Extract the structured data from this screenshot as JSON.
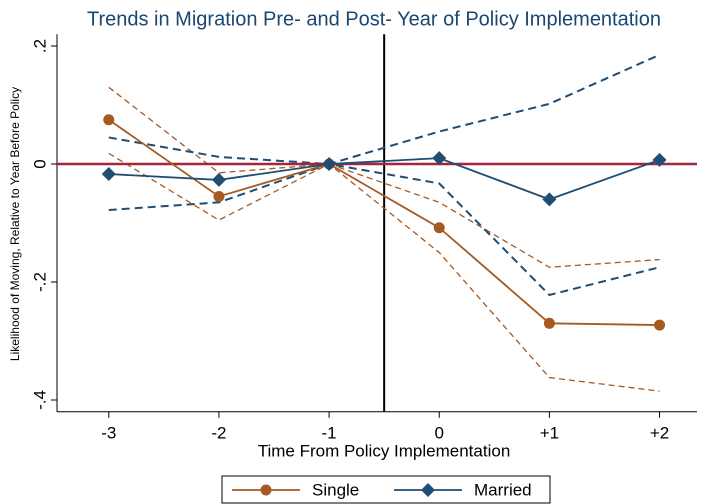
{
  "chart_data": {
    "type": "line",
    "title": "Trends in Migration Pre- and Post- Year of Policy Implementation",
    "x_label": "Time From Policy Implementation",
    "y_label": "Likelihood of Moving, Relative to Year Before Policy",
    "x": [
      -3,
      -2,
      -1,
      0,
      1,
      2
    ],
    "xlim": [
      -3.47,
      2.34
    ],
    "xticks": [
      -3,
      -2,
      -1,
      0,
      {
        "value": 1,
        "label": "+1"
      },
      {
        "value": 2,
        "label": "+2"
      }
    ],
    "ylim": [
      -0.42,
      0.22
    ],
    "yticks": [
      {
        "value": 0.2,
        "label": ".2"
      },
      0,
      {
        "value": -0.2,
        "label": "-.2"
      },
      {
        "value": -0.4,
        "label": "-.4"
      }
    ],
    "hline": 0,
    "hline_color": "#a3263c",
    "vline": -0.5,
    "vline_color": "#000000",
    "series": [
      {
        "name": "Single",
        "color": "#a65a22",
        "marker": "circle",
        "values": [
          0.075,
          -0.055,
          0,
          -0.108,
          -0.27,
          -0.273
        ],
        "ci_upper": [
          0.13,
          -0.015,
          0,
          -0.065,
          -0.175,
          -0.162
        ],
        "ci_lower": [
          0.018,
          -0.095,
          0,
          -0.15,
          -0.362,
          -0.385
        ]
      },
      {
        "name": "Married",
        "color": "#1f4d73",
        "marker": "diamond",
        "values": [
          -0.017,
          -0.027,
          0,
          0.01,
          -0.06,
          0.007
        ],
        "ci_upper": [
          0.045,
          0.012,
          0,
          0.055,
          0.102,
          0.185
        ],
        "ci_lower": [
          -0.078,
          -0.065,
          0,
          -0.033,
          -0.222,
          -0.175
        ]
      }
    ]
  }
}
